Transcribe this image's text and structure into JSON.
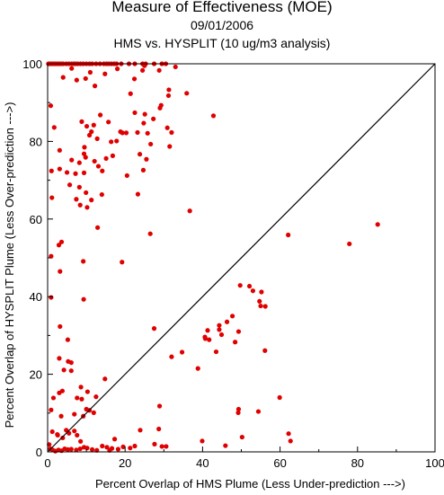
{
  "chart_data": {
    "type": "scatter",
    "title": "Measure of Effectiveness (MOE)",
    "date": "09/01/2006",
    "subtitle": "HMS vs. HYSPLIT  (10 ug/m3 analysis)",
    "xlabel": "Percent Overlap of HMS Plume (Less Under-prediction --->)",
    "ylabel": "Percent Overlap of HYSPLIT Plume (Less Over-prediction --->)",
    "xlim": [
      0,
      100
    ],
    "ylim": [
      0,
      100
    ],
    "xticks": [
      "0",
      "20",
      "40",
      "60",
      "80",
      "100"
    ],
    "yticks": [
      "0",
      "20",
      "40",
      "60",
      "80",
      "100"
    ],
    "grid": false,
    "reference_line": "y = x",
    "colors": {
      "points": "#e00000",
      "axes": "#000000",
      "reference_line": "#000000"
    },
    "points": [
      [
        0.2,
        100
      ],
      [
        0.5,
        100
      ],
      [
        0.8,
        100
      ],
      [
        1.2,
        100
      ],
      [
        1.6,
        100
      ],
      [
        2.0,
        100
      ],
      [
        2.5,
        100
      ],
      [
        3.0,
        100
      ],
      [
        3.5,
        100
      ],
      [
        4.0,
        100
      ],
      [
        4.8,
        100
      ],
      [
        5.5,
        100
      ],
      [
        6.2,
        100
      ],
      [
        6.8,
        100
      ],
      [
        7.2,
        100
      ],
      [
        7.8,
        100
      ],
      [
        8.5,
        100
      ],
      [
        9.2,
        100
      ],
      [
        10.0,
        100
      ],
      [
        10.8,
        100
      ],
      [
        11.5,
        100
      ],
      [
        12.5,
        100
      ],
      [
        13.5,
        100
      ],
      [
        14.5,
        100
      ],
      [
        15.2,
        100
      ],
      [
        15.8,
        100
      ],
      [
        16.5,
        100
      ],
      [
        17.2,
        100
      ],
      [
        17.8,
        100
      ],
      [
        19.0,
        100
      ],
      [
        21.0,
        100
      ],
      [
        22.5,
        100
      ],
      [
        24.5,
        100
      ],
      [
        25.3,
        100
      ],
      [
        27.5,
        100
      ],
      [
        29.5,
        100
      ],
      [
        30.5,
        100
      ],
      [
        25.0,
        99.5
      ],
      [
        33.0,
        99.2
      ],
      [
        0.8,
        89.2
      ],
      [
        1.7,
        83.6
      ],
      [
        4.0,
        96.5
      ],
      [
        6.2,
        98.8
      ],
      [
        7.5,
        95.8
      ],
      [
        9.8,
        96.2
      ],
      [
        11.0,
        97.8
      ],
      [
        12.2,
        94.3
      ],
      [
        14.8,
        97.4
      ],
      [
        18.0,
        98.7
      ],
      [
        21.4,
        92.3
      ],
      [
        22.4,
        96.1
      ],
      [
        24.5,
        98.3
      ],
      [
        28.8,
        98.3
      ],
      [
        31.3,
        93.3
      ],
      [
        31.2,
        91.8
      ],
      [
        35.9,
        92.4
      ],
      [
        42.8,
        86.6
      ],
      [
        8.8,
        85.1
      ],
      [
        10.1,
        83.9
      ],
      [
        11.9,
        84.2
      ],
      [
        13.6,
        86.8
      ],
      [
        15.7,
        85.0
      ],
      [
        16.4,
        79.9
      ],
      [
        17.8,
        80.1
      ],
      [
        18.8,
        82.5
      ],
      [
        19.3,
        82.2
      ],
      [
        20.3,
        82.2
      ],
      [
        22.5,
        87.4
      ],
      [
        23.2,
        82.3
      ],
      [
        24.8,
        84.7
      ],
      [
        25.1,
        87.0
      ],
      [
        25.8,
        82.1
      ],
      [
        26.6,
        79.3
      ],
      [
        27.3,
        85.8
      ],
      [
        29.0,
        88.6
      ],
      [
        29.3,
        89.3
      ],
      [
        30.9,
        83.5
      ],
      [
        31.5,
        78.7
      ],
      [
        32.0,
        82.3
      ],
      [
        9.8,
        75.9
      ],
      [
        10.8,
        81.6
      ],
      [
        11.3,
        82.5
      ],
      [
        12.8,
        80.7
      ],
      [
        9.5,
        78.5
      ],
      [
        3.1,
        77.7
      ],
      [
        3.1,
        72.9
      ],
      [
        5.0,
        72.0
      ],
      [
        6.2,
        75.2
      ],
      [
        7.2,
        71.7
      ],
      [
        8.2,
        74.5
      ],
      [
        9.4,
        76.8
      ],
      [
        9.4,
        71.9
      ],
      [
        12.1,
        74.9
      ],
      [
        13.1,
        73.6
      ],
      [
        15.1,
        75.6
      ],
      [
        16.8,
        76.3
      ],
      [
        20.5,
        71.2
      ],
      [
        23.8,
        76.7
      ],
      [
        24.7,
        72.6
      ],
      [
        25.5,
        75.4
      ],
      [
        1.0,
        72.4
      ],
      [
        1.1,
        65.5
      ],
      [
        5.7,
        68.8
      ],
      [
        7.4,
        65.1
      ],
      [
        8.2,
        68.2
      ],
      [
        8.4,
        63.6
      ],
      [
        9.9,
        66.8
      ],
      [
        10.2,
        63.0
      ],
      [
        11.3,
        64.9
      ],
      [
        14.0,
        66.3
      ],
      [
        14.1,
        72.4
      ],
      [
        23.3,
        66.4
      ],
      [
        12.9,
        57.8
      ],
      [
        2.9,
        53.3
      ],
      [
        3.6,
        54.1
      ],
      [
        3.2,
        46.5
      ],
      [
        0.9,
        50.4
      ],
      [
        0.9,
        39.8
      ],
      [
        9.2,
        49.1
      ],
      [
        9.3,
        39.3
      ],
      [
        19.2,
        48.9
      ],
      [
        26.5,
        56.2
      ],
      [
        36.7,
        62.1
      ],
      [
        62.1,
        55.9
      ],
      [
        77.9,
        53.6
      ],
      [
        85.2,
        58.6
      ],
      [
        49.7,
        42.9
      ],
      [
        52.1,
        42.7
      ],
      [
        53.0,
        41.5
      ],
      [
        55.2,
        41.2
      ],
      [
        54.7,
        38.8
      ],
      [
        55.0,
        37.6
      ],
      [
        56.2,
        37.5
      ],
      [
        47.7,
        35.0
      ],
      [
        46.3,
        33.5
      ],
      [
        44.3,
        32.6
      ],
      [
        44.3,
        31.5
      ],
      [
        41.3,
        31.3
      ],
      [
        40.6,
        29.6
      ],
      [
        41.7,
        28.9
      ],
      [
        40.7,
        29.2
      ],
      [
        44.9,
        30.2
      ],
      [
        49.3,
        31.0
      ],
      [
        48.4,
        28.3
      ],
      [
        56.1,
        26.1
      ],
      [
        43.5,
        25.8
      ],
      [
        38.8,
        21.5
      ],
      [
        32.0,
        24.5
      ],
      [
        34.7,
        25.7
      ],
      [
        27.5,
        31.8
      ],
      [
        3.2,
        32.3
      ],
      [
        5.2,
        28.9
      ],
      [
        3.0,
        24.1
      ],
      [
        5.3,
        23.3
      ],
      [
        6.1,
        23.0
      ],
      [
        4.2,
        21.1
      ],
      [
        6.1,
        20.9
      ],
      [
        8.6,
        16.7
      ],
      [
        3.8,
        15.7
      ],
      [
        10.3,
        15.5
      ],
      [
        14.8,
        18.8
      ],
      [
        0.9,
        10.8
      ],
      [
        1.5,
        13.9
      ],
      [
        3.0,
        15.2
      ],
      [
        3.5,
        9.2
      ],
      [
        6.9,
        9.7
      ],
      [
        7.6,
        13.9
      ],
      [
        8.8,
        13.6
      ],
      [
        9.2,
        9.2
      ],
      [
        10.0,
        11.0
      ],
      [
        10.8,
        10.7
      ],
      [
        11.9,
        10.1
      ],
      [
        12.5,
        14.2
      ],
      [
        1.2,
        5.2
      ],
      [
        2.5,
        4.5
      ],
      [
        2.6,
        4.3
      ],
      [
        3.9,
        3.6
      ],
      [
        4.8,
        5.6
      ],
      [
        5.5,
        4.8
      ],
      [
        6.9,
        5.4
      ],
      [
        7.6,
        4.3
      ],
      [
        8.5,
        2.7
      ],
      [
        0.4,
        1.9
      ],
      [
        0.7,
        0.8
      ],
      [
        1.3,
        0.5
      ],
      [
        2.0,
        0.2
      ],
      [
        2.8,
        0.5
      ],
      [
        3.6,
        0.3
      ],
      [
        4.4,
        0.8
      ],
      [
        5.2,
        0.6
      ],
      [
        6.1,
        0.7
      ],
      [
        7.4,
        0.5
      ],
      [
        8.4,
        0.8
      ],
      [
        9.4,
        1.2
      ],
      [
        10.2,
        1.0
      ],
      [
        11.5,
        0.6
      ],
      [
        12.7,
        0.4
      ],
      [
        14.1,
        1.5
      ],
      [
        15.3,
        1.2
      ],
      [
        16.0,
        0.4
      ],
      [
        16.6,
        0.9
      ],
      [
        17.3,
        3.3
      ],
      [
        18.2,
        0.7
      ],
      [
        19.5,
        1.3
      ],
      [
        21.3,
        1.0
      ],
      [
        22.5,
        1.5
      ],
      [
        23.9,
        5.6
      ],
      [
        27.6,
        2.0
      ],
      [
        28.7,
        5.9
      ],
      [
        29.5,
        1.4
      ],
      [
        30.6,
        1.4
      ],
      [
        28.9,
        11.8
      ],
      [
        39.9,
        2.8
      ],
      [
        45.9,
        1.6
      ],
      [
        49.2,
        10.1
      ],
      [
        49.3,
        11.0
      ],
      [
        50.2,
        3.8
      ],
      [
        54.4,
        10.4
      ],
      [
        59.9,
        14.0
      ],
      [
        62.2,
        4.7
      ],
      [
        62.7,
        2.8
      ]
    ]
  }
}
